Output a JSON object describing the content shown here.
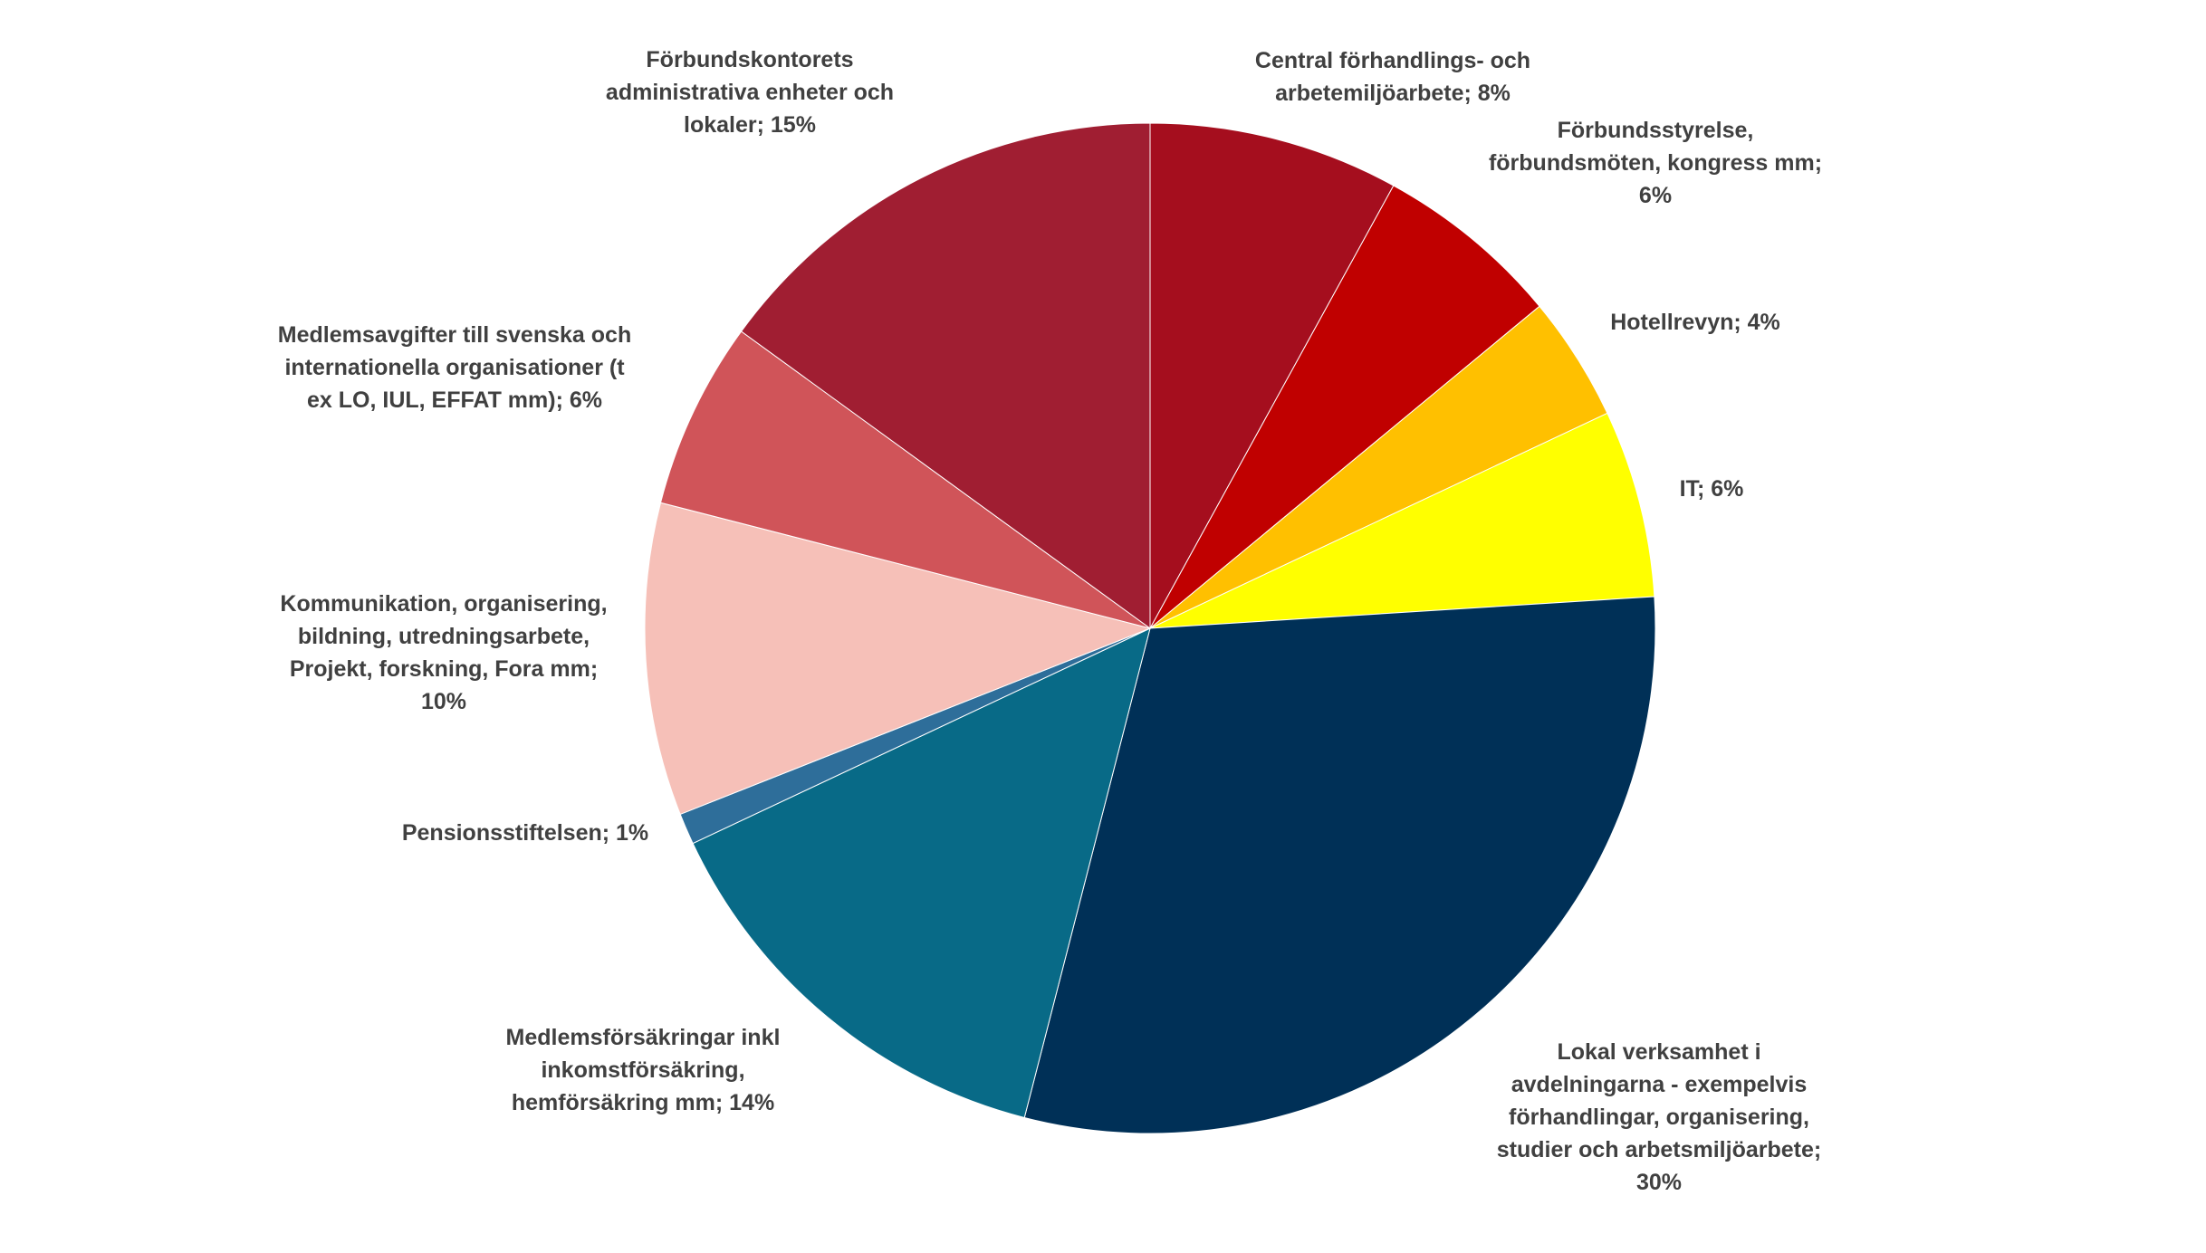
{
  "chart_data": {
    "type": "pie",
    "title": "",
    "start_angle_deg": 0,
    "direction": "clockwise",
    "slices": [
      {
        "lines": [
          "Central förhandlings- och",
          "arbetemiljöarbete; 8%"
        ],
        "value": 8,
        "color": "#A50E1E"
      },
      {
        "lines": [
          "Förbundsstyrelse,",
          "förbundsmöten, kongress mm;",
          "6%"
        ],
        "value": 6,
        "color": "#C00000"
      },
      {
        "lines": [
          "Hotellrevyn; 4%"
        ],
        "value": 4,
        "color": "#FFC000"
      },
      {
        "lines": [
          "IT; 6%"
        ],
        "value": 6,
        "color": "#FFFF00"
      },
      {
        "lines": [
          "Lokal verksamhet i",
          "avdelningarna - exempelvis",
          "förhandlingar, organisering,",
          "studier och arbetsmiljöarbete;",
          "30%"
        ],
        "value": 30,
        "color": "#003057"
      },
      {
        "lines": [
          "Medlemsförsäkringar inkl",
          "inkomstförsäkring,",
          "hemförsäkring mm; 14%"
        ],
        "value": 14,
        "color": "#086A87"
      },
      {
        "lines": [
          "Pensionsstiftelsen; 1%"
        ],
        "value": 1,
        "color": "#2E6E9A"
      },
      {
        "lines": [
          "Kommunikation, organisering,",
          "bildning, utredningsarbete,",
          "Projekt, forskning, Fora mm;",
          "10%"
        ],
        "value": 10,
        "color": "#F6C0B8"
      },
      {
        "lines": [
          "Medlemsavgifter till svenska och",
          "internationella organisationer (t",
          "ex LO, IUL, EFFAT mm); 6%"
        ],
        "value": 6,
        "color": "#D05459"
      },
      {
        "lines": [
          "Förbundskontorets",
          "administrativa enheter och",
          "lokaler; 15%"
        ],
        "value": 15,
        "color": "#A01E32"
      }
    ]
  }
}
